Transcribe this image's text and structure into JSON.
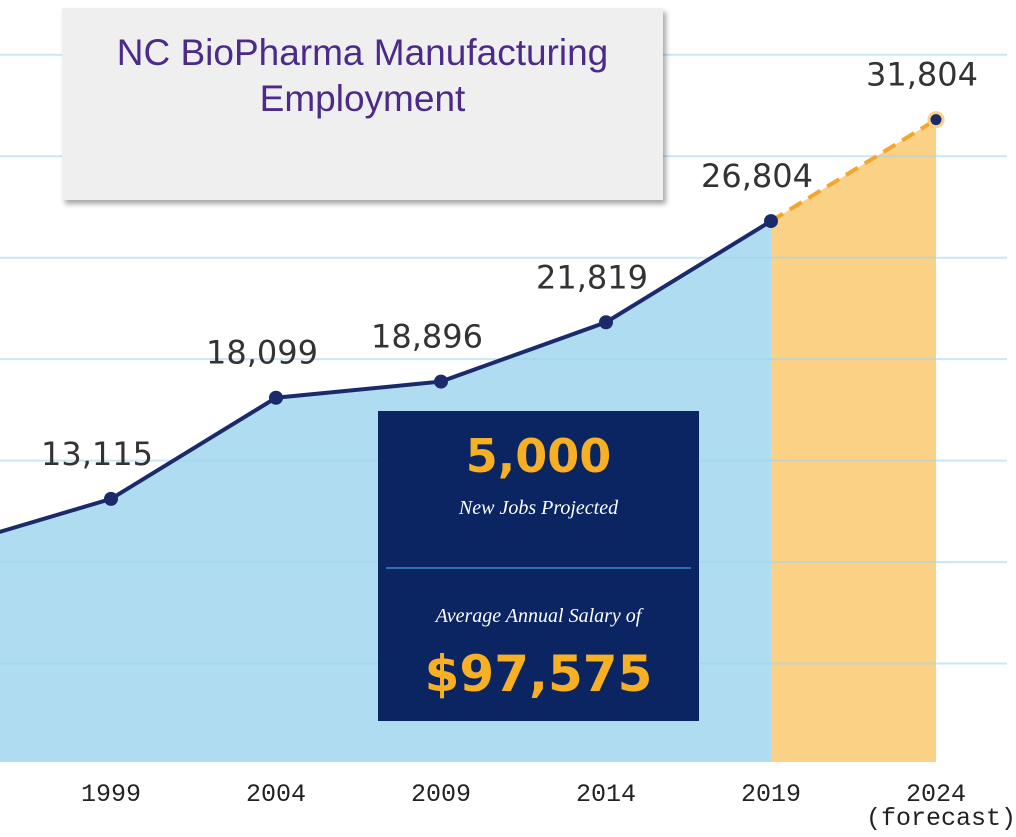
{
  "chart_data": {
    "type": "area-line",
    "title": "NC BioPharma Manufacturing Employment",
    "categories": [
      null,
      "1999",
      "2004",
      "2009",
      "2014",
      "2019",
      "2024 (forecast)"
    ],
    "values": [
      10700,
      13115,
      18099,
      18896,
      21819,
      26804,
      31804
    ],
    "value_labels": [
      null,
      "13,115",
      "18,099",
      "18,896",
      "21,819",
      "26,804",
      "31,804"
    ],
    "color": "#1b2a6b",
    "area_color": "#afdcf0",
    "forecast_color": "#f5a52a",
    "forecast_area_color": "#fbd185",
    "ylim": [
      0,
      37700
    ],
    "yticks": [
      5000,
      10000,
      15000,
      20000,
      25000,
      30000,
      35000
    ],
    "grid": true,
    "annotations": {
      "jobs": "5,000",
      "jobs_label": "New Jobs Projected",
      "salary_label": "Average Annual Salary of",
      "salary": "$97,575"
    }
  }
}
